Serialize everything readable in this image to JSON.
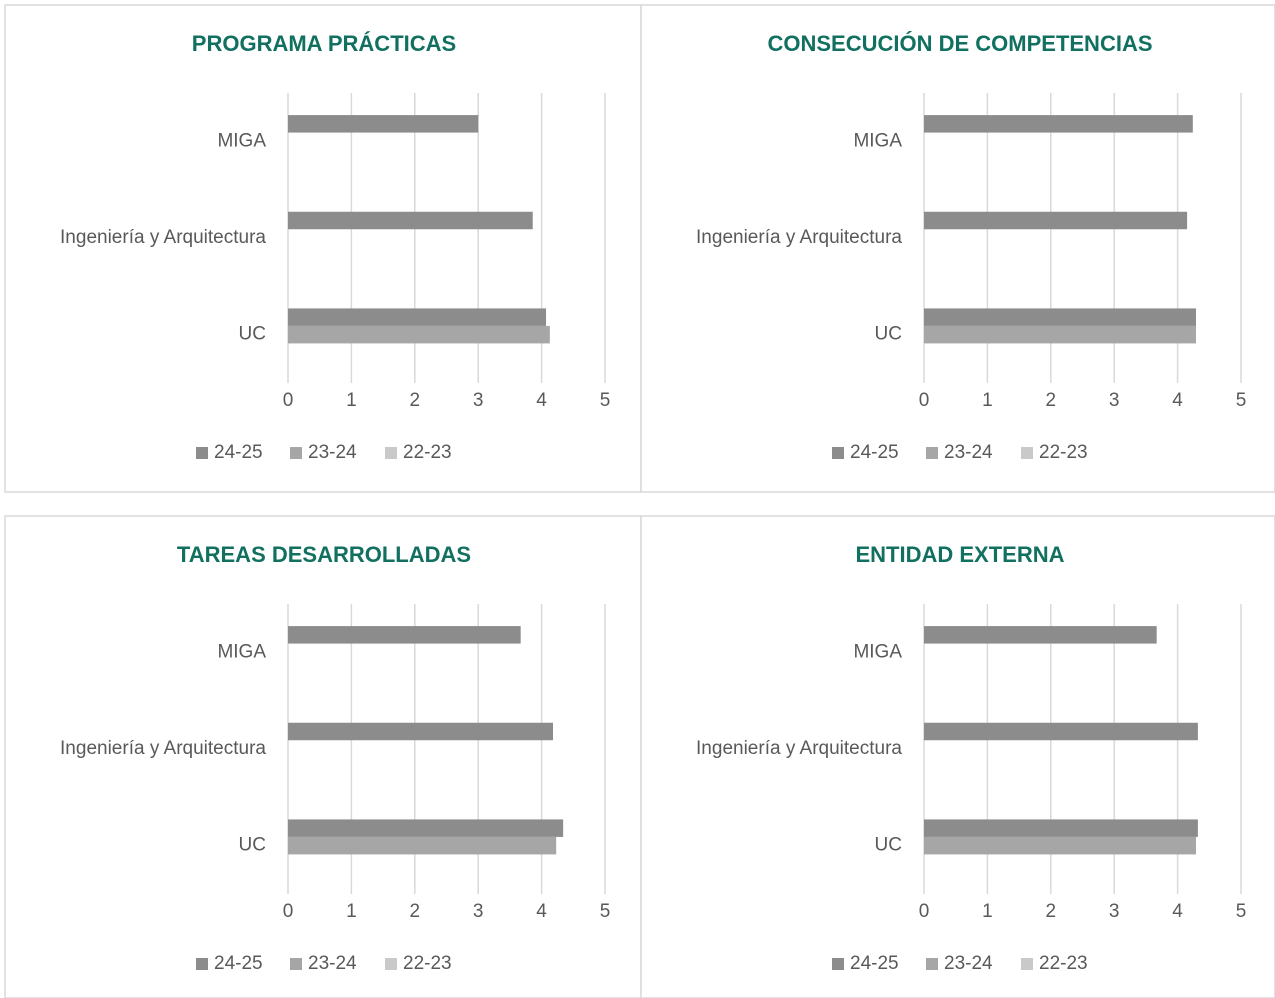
{
  "chart_data": [
    {
      "type": "bar",
      "orientation": "horizontal",
      "title": "PROGRAMA PRÁCTICAS",
      "categories": [
        "MIGA",
        "Ingeniería y Arquitectura",
        "UC"
      ],
      "series": [
        {
          "name": "24-25",
          "color": "#8c8c8c",
          "values": [
            3.0,
            3.86,
            4.07
          ]
        },
        {
          "name": "23-24",
          "color": "#a6a6a6",
          "values": [
            null,
            null,
            4.13
          ]
        },
        {
          "name": "22-23",
          "color": "#c9c9c9",
          "values": [
            null,
            null,
            null
          ]
        }
      ],
      "xlim": [
        0,
        5
      ],
      "xticks": [
        0,
        1,
        2,
        3,
        4,
        5
      ],
      "grid": true,
      "legend": "bottom"
    },
    {
      "type": "bar",
      "orientation": "horizontal",
      "title": "CONSECUCIÓN DE COMPETENCIAS",
      "categories": [
        "MIGA",
        "Ingeniería y Arquitectura",
        "UC"
      ],
      "series": [
        {
          "name": "24-25",
          "color": "#8c8c8c",
          "values": [
            4.24,
            4.15,
            4.29
          ]
        },
        {
          "name": "23-24",
          "color": "#a6a6a6",
          "values": [
            null,
            null,
            4.29
          ]
        },
        {
          "name": "22-23",
          "color": "#c9c9c9",
          "values": [
            null,
            null,
            null
          ]
        }
      ],
      "xlim": [
        0,
        5
      ],
      "xticks": [
        0,
        1,
        2,
        3,
        4,
        5
      ],
      "grid": true,
      "legend": "bottom"
    },
    {
      "type": "bar",
      "orientation": "horizontal",
      "title": "TAREAS DESARROLLADAS",
      "categories": [
        "MIGA",
        "Ingeniería y Arquitectura",
        "UC"
      ],
      "series": [
        {
          "name": "24-25",
          "color": "#8c8c8c",
          "values": [
            3.67,
            4.18,
            4.34
          ]
        },
        {
          "name": "23-24",
          "color": "#a6a6a6",
          "values": [
            null,
            null,
            4.23
          ]
        },
        {
          "name": "22-23",
          "color": "#c9c9c9",
          "values": [
            null,
            null,
            null
          ]
        }
      ],
      "xlim": [
        0,
        5
      ],
      "xticks": [
        0,
        1,
        2,
        3,
        4,
        5
      ],
      "grid": true,
      "legend": "bottom"
    },
    {
      "type": "bar",
      "orientation": "horizontal",
      "title": "ENTIDAD EXTERNA",
      "categories": [
        "MIGA",
        "Ingeniería y Arquitectura",
        "UC"
      ],
      "series": [
        {
          "name": "24-25",
          "color": "#8c8c8c",
          "values": [
            3.67,
            4.32,
            4.32
          ]
        },
        {
          "name": "23-24",
          "color": "#a6a6a6",
          "values": [
            null,
            null,
            4.29
          ]
        },
        {
          "name": "22-23",
          "color": "#c9c9c9",
          "values": [
            null,
            null,
            null
          ]
        }
      ],
      "xlim": [
        0,
        5
      ],
      "xticks": [
        0,
        1,
        2,
        3,
        4,
        5
      ],
      "grid": true,
      "legend": "bottom"
    }
  ]
}
